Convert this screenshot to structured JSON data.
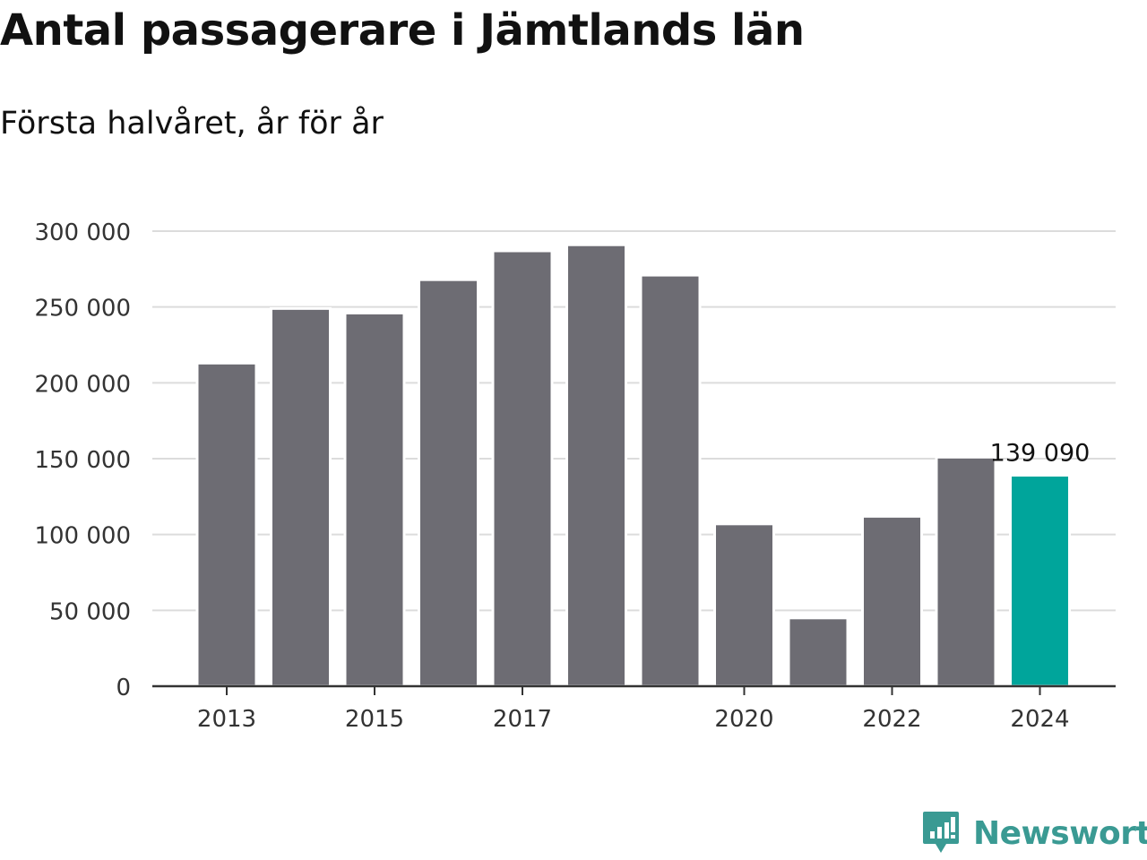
{
  "title": "Antal passagerare i Jämtlands län",
  "subtitle": "Första halvåret, år för år",
  "brand": {
    "name": "Newsworthy",
    "color": "#3a9a93",
    "icon": "newsworthy-logo-icon"
  },
  "colors": {
    "bar": "#6d6c73",
    "highlight": "#00a59b",
    "grid": "#dcdcdc",
    "axis": "#333333",
    "text": "#333333"
  },
  "chart_data": {
    "type": "bar",
    "categories": [
      "2013",
      "2014",
      "2015",
      "2016",
      "2017",
      "2018",
      "2019",
      "2020",
      "2021",
      "2022",
      "2023",
      "2024"
    ],
    "x_tick_labels": [
      "2013",
      "",
      "2015",
      "",
      "2017",
      "",
      "",
      "2020",
      "",
      "2022",
      "",
      "2024"
    ],
    "values": [
      213000,
      249000,
      246000,
      268000,
      287000,
      291000,
      271000,
      107000,
      45000,
      112000,
      151000,
      139090
    ],
    "highlight_index": 11,
    "data_labels": [
      {
        "index": 11,
        "text": "139 090"
      }
    ],
    "y_ticks": [
      0,
      50000,
      100000,
      150000,
      200000,
      250000,
      300000
    ],
    "y_tick_labels": [
      "0",
      "50 000",
      "100 000",
      "150 000",
      "200 000",
      "250 000",
      "300 000"
    ],
    "ylim": [
      0,
      300000
    ],
    "grid": true,
    "xlabel": "",
    "ylabel": ""
  }
}
